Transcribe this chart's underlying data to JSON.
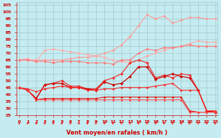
{
  "x": [
    0,
    1,
    2,
    3,
    4,
    5,
    6,
    7,
    8,
    9,
    10,
    11,
    12,
    13,
    14,
    15,
    16,
    17,
    18,
    19,
    20,
    21,
    22,
    23
  ],
  "series": [
    {
      "name": "rising_top",
      "color": "#FF9999",
      "linewidth": 0.8,
      "marker": "D",
      "markersize": 1.8,
      "y": [
        65,
        65,
        65,
        65,
        65,
        65,
        66,
        67,
        67,
        68,
        70,
        72,
        76,
        82,
        90,
        98,
        95,
        97,
        92,
        94,
        96,
        96,
        95,
        95
      ]
    },
    {
      "name": "flat_upper_pink",
      "color": "#FFAAAA",
      "linewidth": 0.8,
      "marker": "D",
      "markersize": 1.8,
      "y": [
        65,
        66,
        64,
        72,
        73,
        72,
        71,
        70,
        69,
        68,
        67,
        65,
        64,
        63,
        65,
        68,
        70,
        72,
        74,
        75,
        77,
        79,
        78,
        78
      ]
    },
    {
      "name": "medium_pink_peak",
      "color": "#FF7777",
      "linewidth": 0.8,
      "marker": "D",
      "markersize": 1.8,
      "y": [
        65,
        65,
        64,
        64,
        63,
        64,
        64,
        64,
        63,
        63,
        63,
        62,
        65,
        65,
        70,
        73,
        72,
        74,
        74,
        75,
        76,
        75,
        75,
        75
      ]
    },
    {
      "name": "red_peak_line",
      "color": "#EE3333",
      "linewidth": 0.9,
      "marker": "D",
      "markersize": 2.0,
      "y": [
        45,
        43,
        37,
        47,
        48,
        50,
        46,
        46,
        44,
        44,
        50,
        52,
        55,
        63,
        65,
        63,
        52,
        54,
        52,
        55,
        54,
        43,
        28,
        27
      ]
    },
    {
      "name": "dark_red_mid",
      "color": "#CC0000",
      "linewidth": 0.9,
      "marker": "D",
      "markersize": 2.0,
      "y": [
        45,
        43,
        37,
        47,
        48,
        48,
        45,
        45,
        44,
        43,
        49,
        47,
        48,
        53,
        60,
        60,
        51,
        53,
        55,
        53,
        52,
        43,
        28,
        27
      ]
    },
    {
      "name": "red_flat1",
      "color": "#FF2222",
      "linewidth": 0.8,
      "marker": "D",
      "markersize": 1.6,
      "y": [
        45,
        44,
        42,
        44,
        45,
        46,
        45,
        45,
        43,
        43,
        44,
        44,
        45,
        45,
        45,
        45,
        46,
        47,
        48,
        43,
        43,
        43,
        28,
        28
      ]
    },
    {
      "name": "red_flat2",
      "color": "#DD1111",
      "linewidth": 0.8,
      "marker": "D",
      "markersize": 1.6,
      "y": [
        45,
        43,
        36,
        37,
        37,
        37,
        37,
        37,
        37,
        37,
        38,
        38,
        38,
        38,
        38,
        38,
        38,
        38,
        38,
        38,
        28,
        27,
        27,
        27
      ]
    },
    {
      "name": "red_flat3",
      "color": "#FF4444",
      "linewidth": 0.8,
      "marker": "D",
      "markersize": 1.6,
      "y": [
        45,
        43,
        36,
        36,
        36,
        36,
        36,
        36,
        36,
        36,
        36,
        36,
        36,
        36,
        36,
        36,
        36,
        36,
        36,
        36,
        27,
        27,
        27,
        27
      ]
    }
  ],
  "xlabel": "Vent moyen/en rafales ( km/h )",
  "xlim": [
    -0.3,
    23.3
  ],
  "ylim": [
    25,
    107
  ],
  "yticks": [
    25,
    30,
    35,
    40,
    45,
    50,
    55,
    60,
    65,
    70,
    75,
    80,
    85,
    90,
    95,
    100,
    105
  ],
  "xticks": [
    0,
    1,
    2,
    3,
    4,
    5,
    6,
    7,
    8,
    9,
    10,
    11,
    12,
    13,
    14,
    15,
    16,
    17,
    18,
    19,
    20,
    21,
    22,
    23
  ],
  "bg_color": "#C5ECF0",
  "grid_color": "#A0C8CC",
  "tick_color": "#CC0000",
  "label_color": "#CC0000",
  "arrow_color": "#EE2222"
}
